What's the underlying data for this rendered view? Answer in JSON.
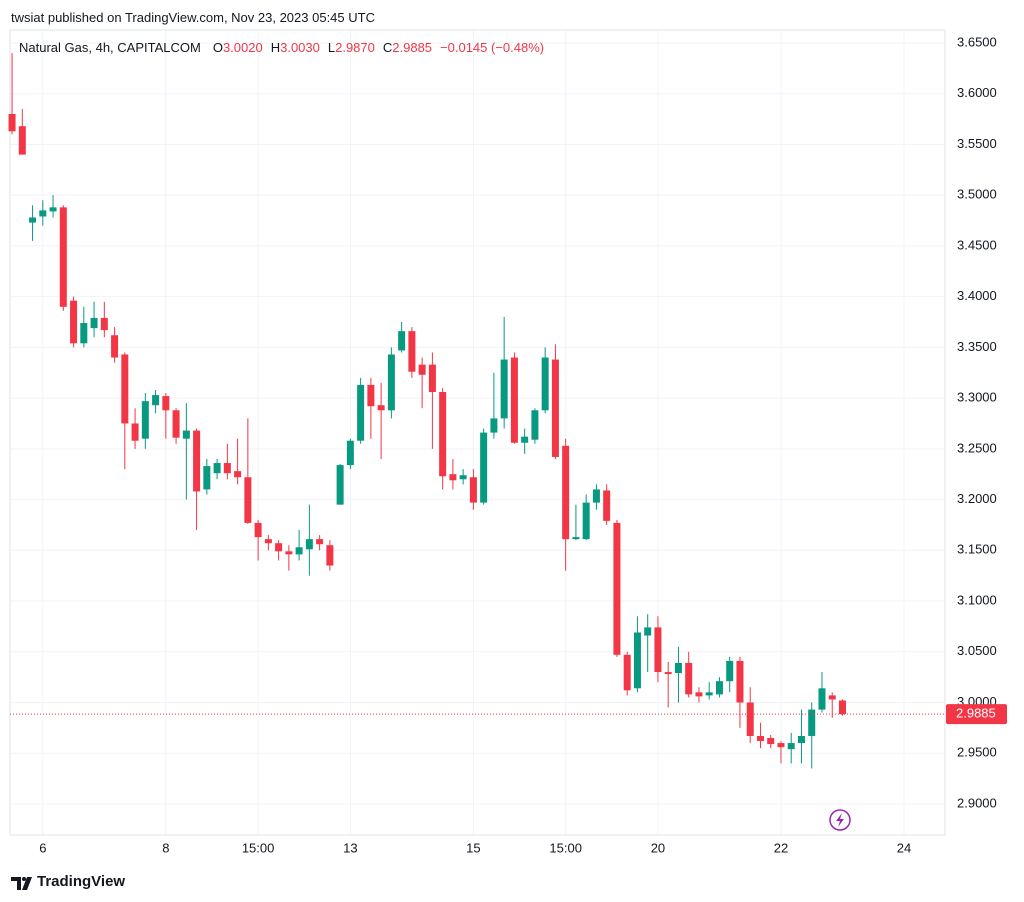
{
  "header": {
    "published": "twsiat published on TradingView.com, Nov 23, 2023 05:45 UTC"
  },
  "footer": {
    "brand": "TradingView"
  },
  "chart_data": {
    "type": "candlestick",
    "title": "Natural Gas, 4h, CAPITALCOM",
    "ohlc_labels": [
      "O",
      "H",
      "L",
      "C"
    ],
    "ohlc_values": [
      3.002,
      3.003,
      2.987,
      2.9885
    ],
    "ohlc_value_labels": [
      "3.0020",
      "3.0030",
      "2.9870",
      "2.9885"
    ],
    "change": "−0.0145 (−0.48%)",
    "up_color": "#089981",
    "down_color": "#f23645",
    "grid": true,
    "last_price": 2.9885,
    "open": [
      3.58,
      3.568,
      3.473,
      3.479,
      3.484,
      3.488,
      3.396,
      3.354,
      3.369,
      3.379,
      3.362,
      3.343,
      3.275,
      3.26,
      3.293,
      3.302,
      3.288,
      3.26,
      3.268,
      3.21,
      3.226,
      3.236,
      3.228,
      3.222,
      3.177,
      3.161,
      3.157,
      3.149,
      3.146,
      3.151,
      3.161,
      3.155,
      3.195,
      3.234,
      3.258,
      3.313,
      3.293,
      3.288,
      3.347,
      3.366,
      3.333,
      3.333,
      3.306,
      3.225,
      3.22,
      3.222,
      3.197,
      3.266,
      3.28,
      3.34,
      3.256,
      3.259,
      3.288,
      3.338,
      3.253,
      3.161,
      3.161,
      3.197,
      3.209,
      3.177,
      3.047,
      3.014,
      3.066,
      3.074,
      3.03,
      3.029,
      3.039,
      3.01,
      3.007,
      3.008,
      3.021,
      3.041,
      3.0,
      2.967,
      2.965,
      2.96,
      2.954,
      2.96,
      2.967,
      2.993,
      3.007,
      3.002
    ],
    "high": [
      3.64,
      3.585,
      3.49,
      3.495,
      3.5,
      3.49,
      3.4,
      3.39,
      3.395,
      3.395,
      3.37,
      3.345,
      3.29,
      3.305,
      3.308,
      3.305,
      3.29,
      3.295,
      3.27,
      3.24,
      3.24,
      3.255,
      3.26,
      3.28,
      3.18,
      3.165,
      3.16,
      3.155,
      3.17,
      3.195,
      3.165,
      3.16,
      3.235,
      3.26,
      3.32,
      3.32,
      3.315,
      3.35,
      3.375,
      3.37,
      3.34,
      3.345,
      3.31,
      3.24,
      3.23,
      3.23,
      3.27,
      3.325,
      3.38,
      3.345,
      3.27,
      3.29,
      3.35,
      3.353,
      3.26,
      3.195,
      3.205,
      3.215,
      3.215,
      3.18,
      3.05,
      3.085,
      3.087,
      3.085,
      3.04,
      3.055,
      3.05,
      3.015,
      3.02,
      3.025,
      3.045,
      3.045,
      3.015,
      2.98,
      2.968,
      2.962,
      2.97,
      2.993,
      3.0,
      3.03,
      3.01,
      3.003
    ],
    "low": [
      3.56,
      3.54,
      3.455,
      3.47,
      3.478,
      3.386,
      3.35,
      3.35,
      3.36,
      3.36,
      3.335,
      3.23,
      3.25,
      3.25,
      3.285,
      3.26,
      3.255,
      3.2,
      3.17,
      3.205,
      3.22,
      3.22,
      3.215,
      3.176,
      3.14,
      3.15,
      3.14,
      3.13,
      3.14,
      3.125,
      3.15,
      3.13,
      3.195,
      3.23,
      3.255,
      3.26,
      3.24,
      3.28,
      3.345,
      3.32,
      3.29,
      3.25,
      3.21,
      3.21,
      3.215,
      3.19,
      3.195,
      3.26,
      3.27,
      3.255,
      3.245,
      3.255,
      3.285,
      3.24,
      3.13,
      3.16,
      3.16,
      3.19,
      3.175,
      3.045,
      3.007,
      3.01,
      3.03,
      3.02,
      2.995,
      3.0,
      3.005,
      3.0,
      3.003,
      3.005,
      3.01,
      2.975,
      2.96,
      2.955,
      2.955,
      2.94,
      2.94,
      2.94,
      2.935,
      2.99,
      2.985,
      2.987
    ],
    "close": [
      3.563,
      3.54,
      3.478,
      3.485,
      3.488,
      3.39,
      3.354,
      3.374,
      3.379,
      3.367,
      3.34,
      3.275,
      3.258,
      3.297,
      3.303,
      3.288,
      3.261,
      3.268,
      3.208,
      3.233,
      3.236,
      3.226,
      3.222,
      3.177,
      3.163,
      3.157,
      3.149,
      3.146,
      3.153,
      3.161,
      3.156,
      3.135,
      3.234,
      3.258,
      3.313,
      3.292,
      3.288,
      3.343,
      3.366,
      3.326,
      3.323,
      3.306,
      3.223,
      3.219,
      3.224,
      3.197,
      3.266,
      3.28,
      3.338,
      3.256,
      3.262,
      3.288,
      3.34,
      3.242,
      3.161,
      3.163,
      3.197,
      3.21,
      3.179,
      3.047,
      3.012,
      3.069,
      3.074,
      3.03,
      3.028,
      3.039,
      3.008,
      3.006,
      3.01,
      3.021,
      3.041,
      3.0,
      2.967,
      2.962,
      2.959,
      2.956,
      2.96,
      2.967,
      2.993,
      3.014,
      3.003,
      2.9885
    ],
    "xlim": [
      -0.2,
      91
    ],
    "xticks": [
      {
        "value": 3,
        "label": "6"
      },
      {
        "value": 15,
        "label": "8"
      },
      {
        "value": 24,
        "label": "15:00"
      },
      {
        "value": 33,
        "label": "13"
      },
      {
        "value": 45,
        "label": "15"
      },
      {
        "value": 54,
        "label": "15:00"
      },
      {
        "value": 63,
        "label": "20"
      },
      {
        "value": 75,
        "label": "22"
      },
      {
        "value": 87,
        "label": "24"
      }
    ],
    "ylim": [
      2.8694,
      3.6628
    ],
    "yticks": [
      {
        "value": 3.65,
        "label": "3.6500"
      },
      {
        "value": 3.6,
        "label": "3.6000"
      },
      {
        "value": 3.55,
        "label": "3.5500"
      },
      {
        "value": 3.5,
        "label": "3.5000"
      },
      {
        "value": 3.45,
        "label": "3.4500"
      },
      {
        "value": 3.4,
        "label": "3.4000"
      },
      {
        "value": 3.35,
        "label": "3.3500"
      },
      {
        "value": 3.3,
        "label": "3.3000"
      },
      {
        "value": 3.25,
        "label": "3.2500"
      },
      {
        "value": 3.2,
        "label": "3.2000"
      },
      {
        "value": 3.15,
        "label": "3.1500"
      },
      {
        "value": 3.1,
        "label": "3.1000"
      },
      {
        "value": 3.05,
        "label": "3.0500"
      },
      {
        "value": 3.0,
        "label": "3.0000"
      },
      {
        "value": 2.95,
        "label": "2.9500"
      },
      {
        "value": 2.9,
        "label": "2.9000"
      }
    ]
  }
}
